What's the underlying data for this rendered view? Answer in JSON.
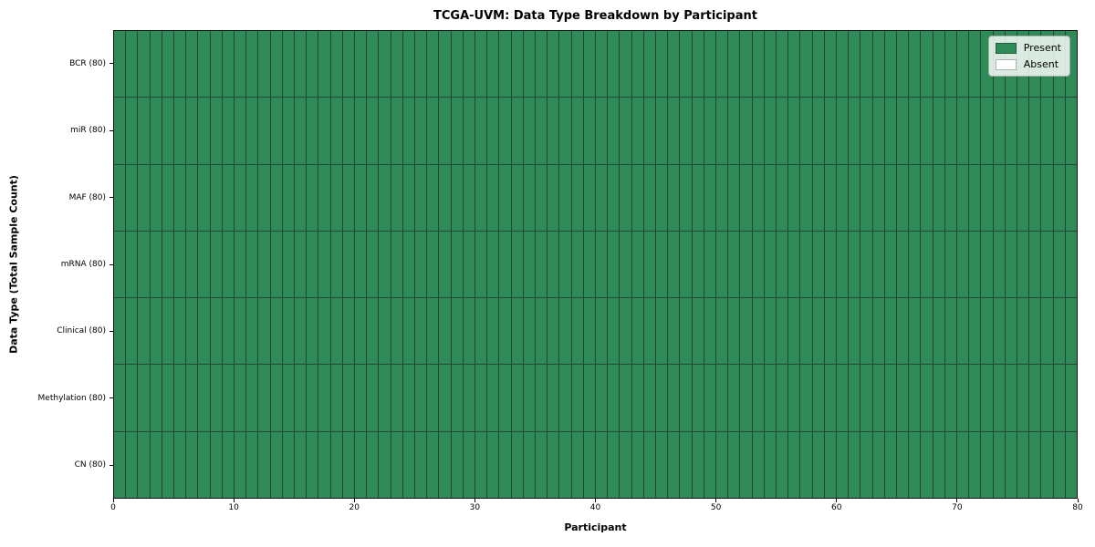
{
  "chart_data": {
    "type": "heatmap",
    "title": "TCGA-UVM: Data Type Breakdown by Participant",
    "xlabel": "Participant",
    "ylabel": "Data Type (Total Sample Count)",
    "x_range": [
      0,
      80
    ],
    "x_ticks": [
      "0",
      "10",
      "20",
      "30",
      "40",
      "50",
      "60",
      "70",
      "80"
    ],
    "n_participants": 80,
    "rows": [
      {
        "label": "BCR (80)",
        "data_type": "BCR",
        "total_samples": 80,
        "present": 80,
        "absent": 0
      },
      {
        "label": "miR (80)",
        "data_type": "miR",
        "total_samples": 80,
        "present": 80,
        "absent": 0
      },
      {
        "label": "MAF (80)",
        "data_type": "MAF",
        "total_samples": 80,
        "present": 80,
        "absent": 0
      },
      {
        "label": "mRNA (80)",
        "data_type": "mRNA",
        "total_samples": 80,
        "present": 80,
        "absent": 0
      },
      {
        "label": "Clinical (80)",
        "data_type": "Clinical",
        "total_samples": 80,
        "present": 80,
        "absent": 0
      },
      {
        "label": "Methylation (80)",
        "data_type": "Methylation",
        "total_samples": 80,
        "present": 80,
        "absent": 0
      },
      {
        "label": "CN (80)",
        "data_type": "CN",
        "total_samples": 80,
        "present": 80,
        "absent": 0
      }
    ],
    "legend": {
      "position": "upper right",
      "entries": [
        {
          "label": "Present",
          "color": "#2e8b57"
        },
        {
          "label": "Absent",
          "color": "#ffffff"
        }
      ]
    },
    "colors": {
      "present": "#2e8b57",
      "absent": "#ffffff",
      "grid_line": "#264634"
    },
    "grid": "cell-borders"
  }
}
